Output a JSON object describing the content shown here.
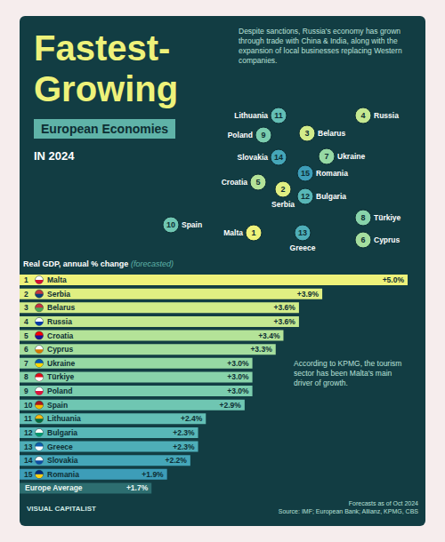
{
  "chart_data": {
    "type": "bar",
    "orientation": "horizontal",
    "title": "Fastest-Growing",
    "subtitle": "European Economies",
    "date_label": "IN 2024",
    "xlabel": "Real GDP, annual % change",
    "xlabel_note": "(forecasted)",
    "annotations": [
      "Despite sanctions, Russia's economy has grown through trade with China & India, along with the expansion of local businesses replacing Western companies.",
      "According to KPMG, the tourism sector has been Malta's main driver of growth."
    ],
    "footer": [
      "Forecasts as of Oct 2024",
      "Source: IMF; European Bank; Allianz, KPMG, CBS"
    ],
    "brand": "VISUAL CAPITALIST",
    "categories": [
      "Malta",
      "Serbia",
      "Belarus",
      "Russia",
      "Croatia",
      "Cyprus",
      "Ukraine",
      "Türkiye",
      "Poland",
      "Spain",
      "Lithuania",
      "Bulgaria",
      "Greece",
      "Slovakia",
      "Romania",
      "Europe Average"
    ],
    "ranks": [
      1,
      2,
      3,
      4,
      5,
      6,
      7,
      8,
      9,
      10,
      11,
      12,
      13,
      14,
      15,
      null
    ],
    "values": [
      5.0,
      3.9,
      3.6,
      3.6,
      3.4,
      3.3,
      3.0,
      3.0,
      3.0,
      2.9,
      2.4,
      2.3,
      2.3,
      2.2,
      1.9,
      1.7
    ],
    "value_labels": [
      "+5.0%",
      "+3.9%",
      "+3.6%",
      "+3.6%",
      "+3.4%",
      "+3.3%",
      "+3.0%",
      "+3.0%",
      "+3.0%",
      "+2.9%",
      "+2.4%",
      "+2.3%",
      "+2.3%",
      "+2.2%",
      "+1.9%",
      "+1.7%"
    ],
    "colors": [
      "#eef27a",
      "#e0ef82",
      "#d2ec8a",
      "#c4e891",
      "#b4e398",
      "#a5de9e",
      "#96d9a4",
      "#88d3aa",
      "#7bcdae",
      "#6fc6b2",
      "#63bfb5",
      "#58b7b7",
      "#4eaeb8",
      "#45a6b8",
      "#3d9db8",
      "#2d6e70"
    ],
    "xlim": [
      0,
      5
    ],
    "data_labels": true,
    "tick_labels": false,
    "grid": false
  }
}
